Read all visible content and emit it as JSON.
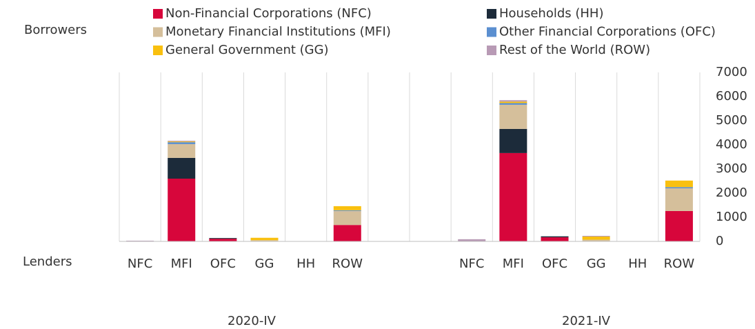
{
  "chart_data": {
    "type": "stacked_bar",
    "axis_top_label": "Borrowers",
    "axis_bottom_label": "Lenders",
    "categories": [
      "NFC",
      "MFI",
      "OFC",
      "GG",
      "HH",
      "ROW",
      null,
      null,
      "NFC",
      "MFI",
      "OFC",
      "GG",
      "HH",
      "ROW"
    ],
    "groups": [
      "2020-IV",
      "2021-IV"
    ],
    "series": [
      {
        "name": "Non-Financial Corporations (NFC)",
        "color": "#d7063b",
        "values": [
          0,
          2600,
          110,
          0,
          0,
          680,
          null,
          null,
          0,
          3660,
          170,
          0,
          0,
          1260
        ]
      },
      {
        "name": "Households (HH)",
        "color": "#1c2b3a",
        "values": [
          0,
          860,
          30,
          0,
          0,
          0,
          null,
          null,
          0,
          1000,
          40,
          0,
          0,
          0
        ]
      },
      {
        "name": "Monetary Financial Institutions (MFI)",
        "color": "#d5bf9b",
        "values": [
          0,
          570,
          0,
          50,
          0,
          580,
          null,
          null,
          0,
          1000,
          0,
          70,
          0,
          940
        ]
      },
      {
        "name": "Other Financial Corporations (OFC)",
        "color": "#5b8fd0",
        "values": [
          0,
          80,
          0,
          0,
          0,
          30,
          null,
          null,
          0,
          70,
          0,
          0,
          0,
          50
        ]
      },
      {
        "name": "General Government (GG)",
        "color": "#f9c00f",
        "values": [
          0,
          30,
          0,
          100,
          0,
          170,
          null,
          null,
          0,
          60,
          0,
          130,
          0,
          270
        ]
      },
      {
        "name": "Rest of the World (ROW)",
        "color": "#b89ab5",
        "values": [
          30,
          30,
          0,
          0,
          0,
          0,
          null,
          null,
          90,
          60,
          0,
          30,
          0,
          0
        ]
      }
    ],
    "ylim": [
      0,
      7000
    ],
    "yticks": [
      0,
      1000,
      2000,
      3000,
      4000,
      5000,
      6000,
      7000
    ],
    "grid": false
  }
}
